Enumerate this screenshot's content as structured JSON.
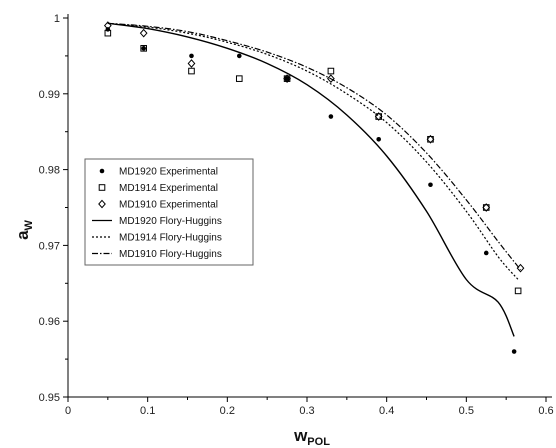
{
  "chart_data": {
    "type": "scatter",
    "xlabel": "w",
    "xlabel_sub": "POL",
    "ylabel": "a",
    "ylabel_sub": "W",
    "xlim": [
      0,
      0.6
    ],
    "ylim": [
      0.95,
      1.0
    ],
    "xticks": [
      0,
      0.1,
      0.2,
      0.3,
      0.4,
      0.5,
      0.6
    ],
    "xtick_labels": [
      "0",
      "0.1",
      "0.2",
      "0.3",
      "0.4",
      "0.5",
      "0.6"
    ],
    "yticks": [
      0.95,
      0.96,
      0.97,
      0.98,
      0.99,
      1.0
    ],
    "ytick_labels": [
      "0.95",
      "0.96",
      "0.97",
      "0.98",
      "0.99",
      "1"
    ],
    "grid": false,
    "legend_position": "center-left",
    "series": [
      {
        "name": "MD1920 Experimental",
        "kind": "scatter",
        "marker": "filled-circle",
        "x": [
          0.05,
          0.095,
          0.155,
          0.215,
          0.275,
          0.33,
          0.39,
          0.455,
          0.525,
          0.56
        ],
        "y": [
          0.9985,
          0.996,
          0.995,
          0.995,
          0.992,
          0.987,
          0.984,
          0.978,
          0.969,
          0.956
        ]
      },
      {
        "name": "MD1914 Experimental",
        "kind": "scatter",
        "marker": "open-square",
        "x": [
          0.05,
          0.095,
          0.155,
          0.215,
          0.275,
          0.33,
          0.39,
          0.455,
          0.525,
          0.565
        ],
        "y": [
          0.998,
          0.996,
          0.993,
          0.992,
          0.992,
          0.993,
          0.987,
          0.984,
          0.975,
          0.964
        ]
      },
      {
        "name": "MD1910 Experimental",
        "kind": "scatter",
        "marker": "open-diamond",
        "x": [
          0.05,
          0.095,
          0.155,
          0.275,
          0.33,
          0.39,
          0.455,
          0.525,
          0.568
        ],
        "y": [
          0.999,
          0.998,
          0.994,
          0.992,
          0.992,
          0.987,
          0.984,
          0.975,
          0.967
        ]
      },
      {
        "name": "MD1920 Flory-Huggins",
        "kind": "line",
        "dash": "solid",
        "x": [
          0.05,
          0.1,
          0.15,
          0.2,
          0.25,
          0.3,
          0.35,
          0.4,
          0.45,
          0.5,
          0.54,
          0.56
        ],
        "y": [
          0.9993,
          0.9986,
          0.9975,
          0.996,
          0.994,
          0.9912,
          0.9872,
          0.9818,
          0.9745,
          0.9655,
          0.9625,
          0.958
        ]
      },
      {
        "name": "MD1914 Flory-Huggins",
        "kind": "line",
        "dash": "dotted",
        "x": [
          0.05,
          0.1,
          0.15,
          0.2,
          0.25,
          0.3,
          0.35,
          0.4,
          0.45,
          0.5,
          0.54,
          0.565
        ],
        "y": [
          0.9993,
          0.9988,
          0.998,
          0.9968,
          0.9952,
          0.993,
          0.99,
          0.9862,
          0.981,
          0.9745,
          0.9685,
          0.9655
        ]
      },
      {
        "name": "MD1910 Flory-Huggins",
        "kind": "line",
        "dash": "dash-dot",
        "x": [
          0.05,
          0.1,
          0.15,
          0.2,
          0.25,
          0.3,
          0.35,
          0.4,
          0.45,
          0.5,
          0.54,
          0.568
        ],
        "y": [
          0.9993,
          0.9989,
          0.9982,
          0.997,
          0.9955,
          0.9935,
          0.9908,
          0.9872,
          0.9822,
          0.976,
          0.9705,
          0.9668
        ]
      }
    ]
  }
}
